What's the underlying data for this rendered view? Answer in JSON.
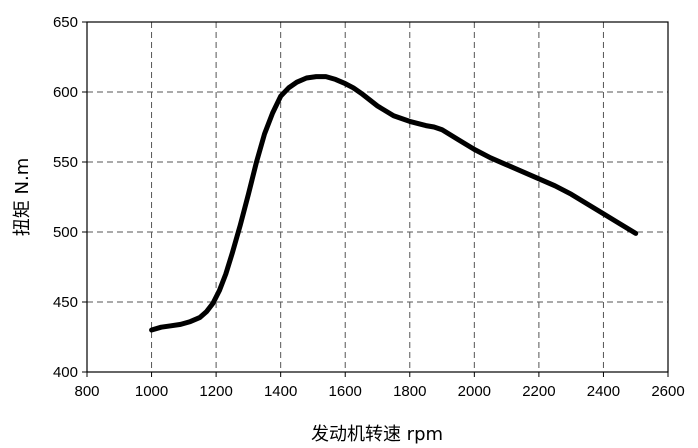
{
  "chart_data": {
    "type": "line",
    "title": "",
    "xlabel": "发动机转速  rpm",
    "ylabel": "扭矩  N.m",
    "xlim": [
      800,
      2600
    ],
    "ylim": [
      400,
      650
    ],
    "x_ticks": [
      800,
      1000,
      1200,
      1400,
      1600,
      1800,
      2000,
      2200,
      2400,
      2600
    ],
    "y_ticks": [
      400,
      450,
      500,
      550,
      600,
      650
    ],
    "grid": true,
    "legend": "none",
    "series": [
      {
        "color": "#000000",
        "x": [
          1000,
          1030,
          1060,
          1090,
          1120,
          1150,
          1170,
          1190,
          1210,
          1230,
          1250,
          1275,
          1300,
          1325,
          1350,
          1375,
          1400,
          1425,
          1450,
          1480,
          1510,
          1540,
          1570,
          1600,
          1625,
          1650,
          1700,
          1750,
          1800,
          1850,
          1875,
          1900,
          1950,
          2000,
          2050,
          2100,
          2150,
          2200,
          2250,
          2300,
          2350,
          2400,
          2450,
          2500
        ],
        "y": [
          430,
          432,
          433,
          434,
          436,
          439,
          443,
          449,
          458,
          470,
          485,
          505,
          527,
          550,
          570,
          585,
          597,
          603,
          607,
          610,
          611,
          611,
          609,
          606,
          603,
          599,
          590,
          583,
          579,
          576,
          575,
          573,
          566,
          559,
          553,
          548,
          543,
          538,
          533,
          527,
          520,
          513,
          506,
          499
        ]
      }
    ]
  }
}
